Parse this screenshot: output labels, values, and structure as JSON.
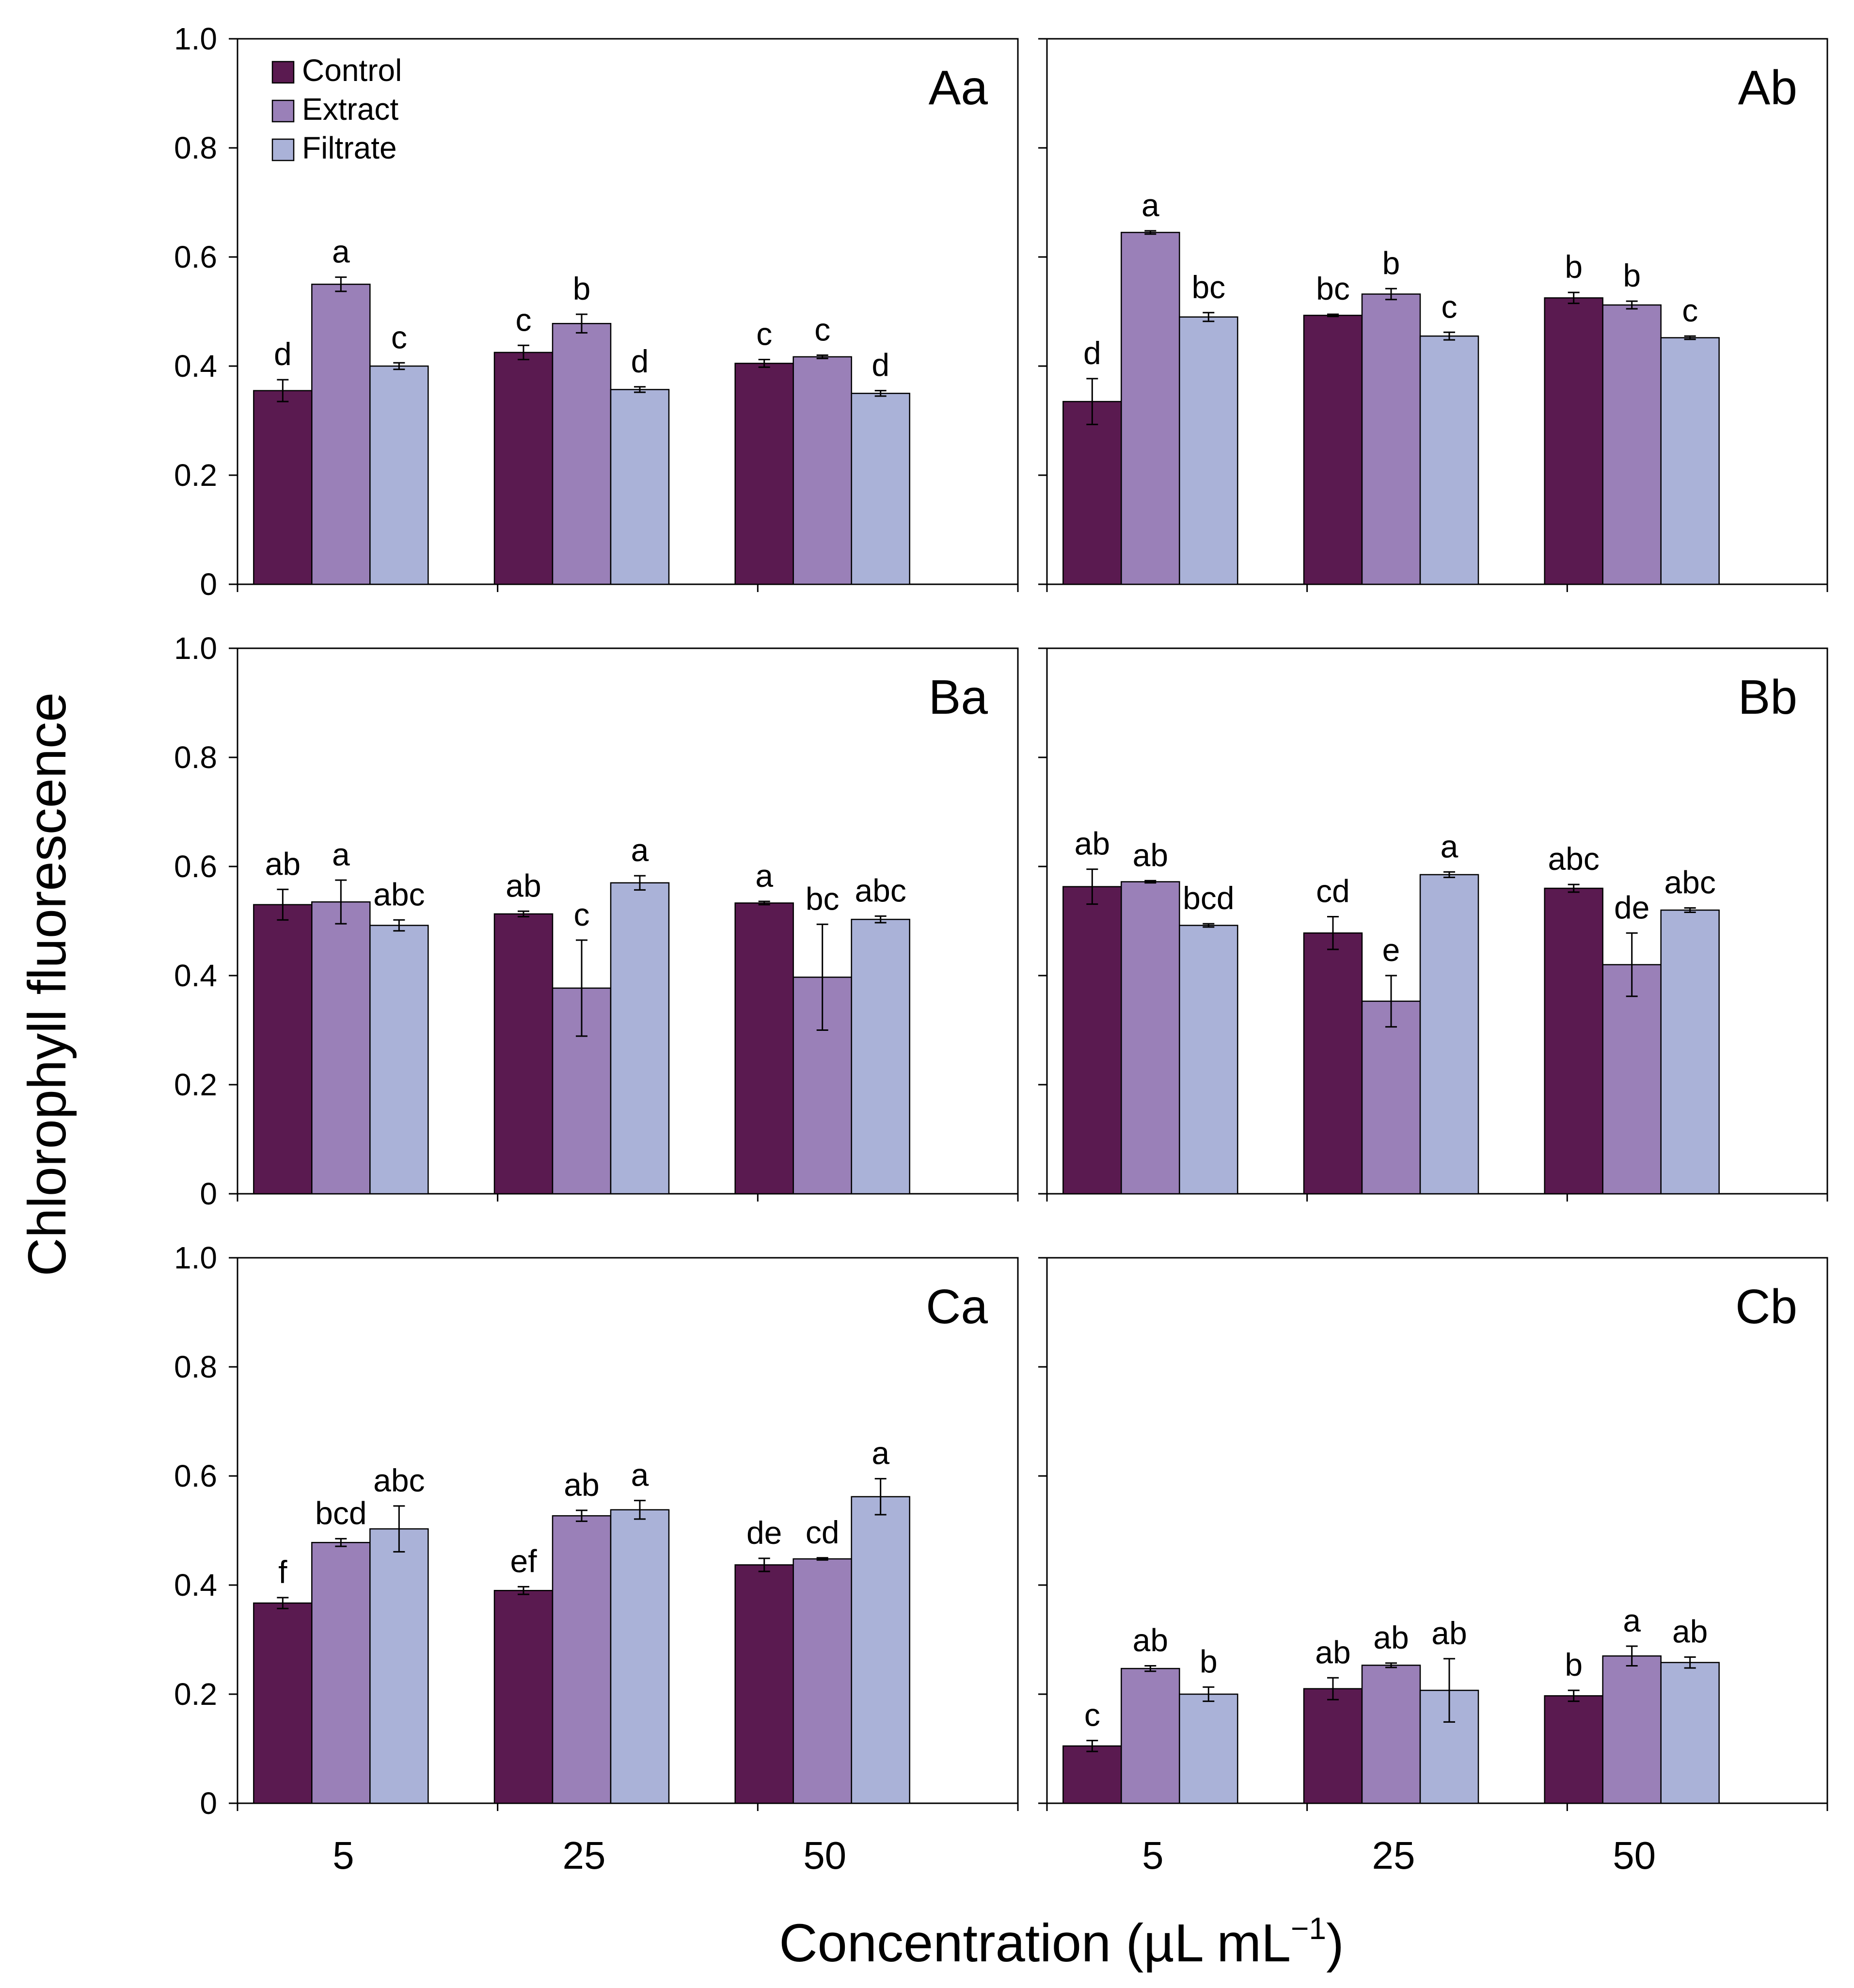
{
  "chart_data": {
    "type": "bar",
    "layout": "3x2 grid of panels",
    "ylabel": "Chlorophyll fluorescence",
    "xlabel": "Concentration (µL mL",
    "xlabel_superscript": "−1",
    "xlabel_close": ")",
    "categories": [
      "5",
      "25",
      "50"
    ],
    "ylim": [
      0,
      1.0
    ],
    "yticks": [
      "0",
      "0.2",
      "0.4",
      "0.6",
      "0.8",
      "1.0"
    ],
    "ytick_values": [
      0,
      0.2,
      0.4,
      0.6,
      0.8,
      1.0
    ],
    "legend": {
      "placement": "top-left of panel Aa",
      "entries": [
        "Control",
        "Extract",
        "Filtrate"
      ]
    },
    "colors": {
      "Control": "#5a1a50",
      "Extract": "#9a80b8",
      "Filtrate": "#aab2d8"
    },
    "panels": [
      {
        "label": "Aa",
        "series": [
          {
            "name": "Control",
            "values": [
              0.355,
              0.425,
              0.405
            ],
            "errors": [
              0.02,
              0.013,
              0.007
            ],
            "letters": [
              "d",
              "c",
              "c"
            ]
          },
          {
            "name": "Extract",
            "values": [
              0.55,
              0.478,
              0.417
            ],
            "errors": [
              0.013,
              0.017,
              0.003
            ],
            "letters": [
              "a",
              "b",
              "c"
            ]
          },
          {
            "name": "Filtrate",
            "values": [
              0.4,
              0.357,
              0.35
            ],
            "errors": [
              0.006,
              0.005,
              0.005
            ],
            "letters": [
              "c",
              "d",
              "d"
            ]
          }
        ]
      },
      {
        "label": "Ab",
        "series": [
          {
            "name": "Control",
            "values": [
              0.335,
              0.493,
              0.525
            ],
            "errors": [
              0.042,
              0.002,
              0.01
            ],
            "letters": [
              "d",
              "bc",
              "b"
            ]
          },
          {
            "name": "Extract",
            "values": [
              0.645,
              0.532,
              0.512
            ],
            "errors": [
              0.003,
              0.01,
              0.007
            ],
            "letters": [
              "a",
              "b",
              "b"
            ]
          },
          {
            "name": "Filtrate",
            "values": [
              0.49,
              0.455,
              0.452
            ],
            "errors": [
              0.008,
              0.007,
              0.003
            ],
            "letters": [
              "bc",
              "c",
              "c"
            ]
          }
        ]
      },
      {
        "label": "Ba",
        "series": [
          {
            "name": "Control",
            "values": [
              0.53,
              0.513,
              0.533
            ],
            "errors": [
              0.028,
              0.005,
              0.003
            ],
            "letters": [
              "ab",
              "ab",
              "a"
            ]
          },
          {
            "name": "Extract",
            "values": [
              0.535,
              0.377,
              0.397
            ],
            "errors": [
              0.04,
              0.088,
              0.097
            ],
            "letters": [
              "a",
              "c",
              "bc"
            ]
          },
          {
            "name": "Filtrate",
            "values": [
              0.492,
              0.57,
              0.503
            ],
            "errors": [
              0.01,
              0.013,
              0.006
            ],
            "letters": [
              "abc",
              "a",
              "abc"
            ]
          }
        ]
      },
      {
        "label": "Bb",
        "series": [
          {
            "name": "Control",
            "values": [
              0.563,
              0.478,
              0.56
            ],
            "errors": [
              0.032,
              0.03,
              0.007
            ],
            "letters": [
              "ab",
              "cd",
              "abc"
            ]
          },
          {
            "name": "Extract",
            "values": [
              0.572,
              0.353,
              0.42
            ],
            "errors": [
              0.002,
              0.047,
              0.058
            ],
            "letters": [
              "ab",
              "e",
              "de"
            ]
          },
          {
            "name": "Filtrate",
            "values": [
              0.492,
              0.585,
              0.52
            ],
            "errors": [
              0.003,
              0.005,
              0.004
            ],
            "letters": [
              "bcd",
              "a",
              "abc"
            ]
          }
        ]
      },
      {
        "label": "Ca",
        "series": [
          {
            "name": "Control",
            "values": [
              0.367,
              0.39,
              0.437
            ],
            "errors": [
              0.01,
              0.007,
              0.012
            ],
            "letters": [
              "f",
              "ef",
              "de"
            ]
          },
          {
            "name": "Extract",
            "values": [
              0.478,
              0.527,
              0.448
            ],
            "errors": [
              0.007,
              0.01,
              0.002
            ],
            "letters": [
              "bcd",
              "ab",
              "cd"
            ]
          },
          {
            "name": "Filtrate",
            "values": [
              0.503,
              0.538,
              0.562
            ],
            "errors": [
              0.042,
              0.017,
              0.033
            ],
            "letters": [
              "abc",
              "a",
              "a"
            ]
          }
        ]
      },
      {
        "label": "Cb",
        "series": [
          {
            "name": "Control",
            "values": [
              0.105,
              0.21,
              0.197
            ],
            "errors": [
              0.01,
              0.02,
              0.01
            ],
            "letters": [
              "c",
              "ab",
              "b"
            ]
          },
          {
            "name": "Extract",
            "values": [
              0.247,
              0.253,
              0.27
            ],
            "errors": [
              0.005,
              0.004,
              0.018
            ],
            "letters": [
              "ab",
              "ab",
              "a"
            ]
          },
          {
            "name": "Filtrate",
            "values": [
              0.2,
              0.207,
              0.258
            ],
            "errors": [
              0.013,
              0.058,
              0.01
            ],
            "letters": [
              "b",
              "ab",
              "ab"
            ]
          }
        ]
      }
    ]
  }
}
